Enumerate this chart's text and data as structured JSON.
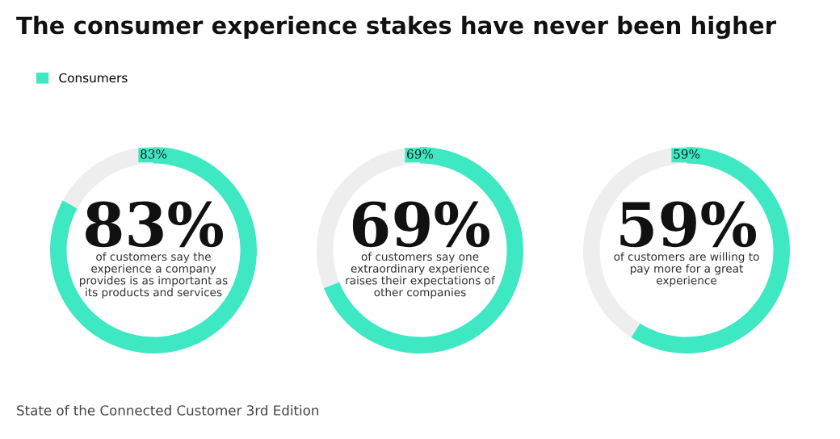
{
  "chart_data": [
    {
      "type": "donut",
      "title": "The consumer experience stakes have never been higher",
      "categories": [
        "Consumers",
        null
      ],
      "values": [
        83,
        17
      ],
      "colors": [
        "#3de8c3",
        "#eeeeee"
      ],
      "value_labels": [
        "83%",
        null
      ],
      "legend": "top left",
      "annotations": [
        "83%",
        "of customers say the\nexperience a company\nprovides is as important as\nits products and services",
        "State of the Connected Customer 3rd Edition"
      ]
    },
    {
      "type": "donut",
      "categories": [
        null,
        null
      ],
      "values": [
        69,
        31
      ],
      "colors": [
        "#3de8c3",
        "#eeeeee"
      ],
      "value_labels": [
        "69%",
        null
      ],
      "annotations": [
        "69%",
        "of customers say one\nextraordinary experience\nraises their expectations of\nother companies"
      ]
    },
    {
      "type": "donut",
      "categories": [
        null,
        null
      ],
      "values": [
        59,
        41
      ],
      "colors": [
        "#3de8c3",
        "#eeeeee"
      ],
      "value_labels": [
        "59%",
        null
      ],
      "annotations": [
        "59%",
        "of customers are willing to\npay more for a great\nexperience"
      ]
    }
  ]
}
